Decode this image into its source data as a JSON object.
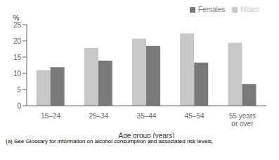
{
  "chart_data": {
    "type": "bar",
    "categories": [
      "15–24",
      "25–34",
      "35–44",
      "45–54",
      "55 years\nor over"
    ],
    "series": [
      {
        "name": "Males",
        "color": "#c8c8c8",
        "values": [
          11.0,
          17.8,
          20.7,
          22.3,
          19.4
        ]
      },
      {
        "name": "Females",
        "color": "#7a7a7a",
        "values": [
          11.9,
          13.9,
          18.5,
          13.3,
          6.7
        ]
      }
    ],
    "xlabel": "Age group (years)",
    "ylabel": "%",
    "ylim": [
      0,
      25
    ],
    "yticks": [
      0,
      5,
      10,
      15,
      20,
      25
    ],
    "grid": false,
    "legend": "upper right",
    "annotations": [
      "(a) See Glossary for information on alcohol consumption and associated risk levels."
    ]
  }
}
